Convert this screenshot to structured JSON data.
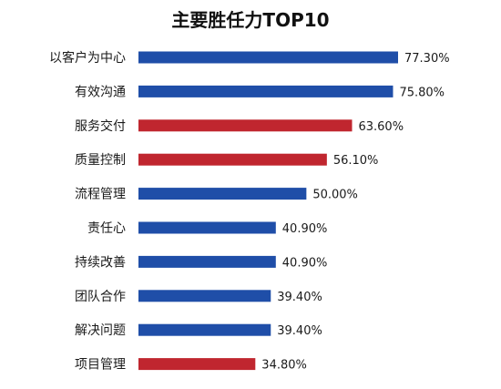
{
  "chart_data": {
    "type": "bar",
    "orientation": "horizontal",
    "title": "主要胜任力TOP10",
    "categories": [
      "以客户为中心",
      "有效沟通",
      "服务交付",
      "质量控制",
      "流程管理",
      "责任心",
      "持续改善",
      "团队合作",
      "解决问题",
      "项目管理"
    ],
    "values": [
      77.3,
      75.8,
      63.6,
      56.1,
      50.0,
      40.9,
      40.9,
      39.4,
      39.4,
      34.8
    ],
    "value_labels": [
      "77.30%",
      "75.80%",
      "63.60%",
      "56.10%",
      "50.00%",
      "40.90%",
      "40.90%",
      "39.40%",
      "39.40%",
      "34.80%"
    ],
    "bar_colors": [
      "#1f4ea8",
      "#1f4ea8",
      "#c0262f",
      "#c0262f",
      "#1f4ea8",
      "#1f4ea8",
      "#1f4ea8",
      "#1f4ea8",
      "#1f4ea8",
      "#c0262f"
    ],
    "xlim": [
      0,
      80
    ],
    "grid": false,
    "legend": "none"
  }
}
